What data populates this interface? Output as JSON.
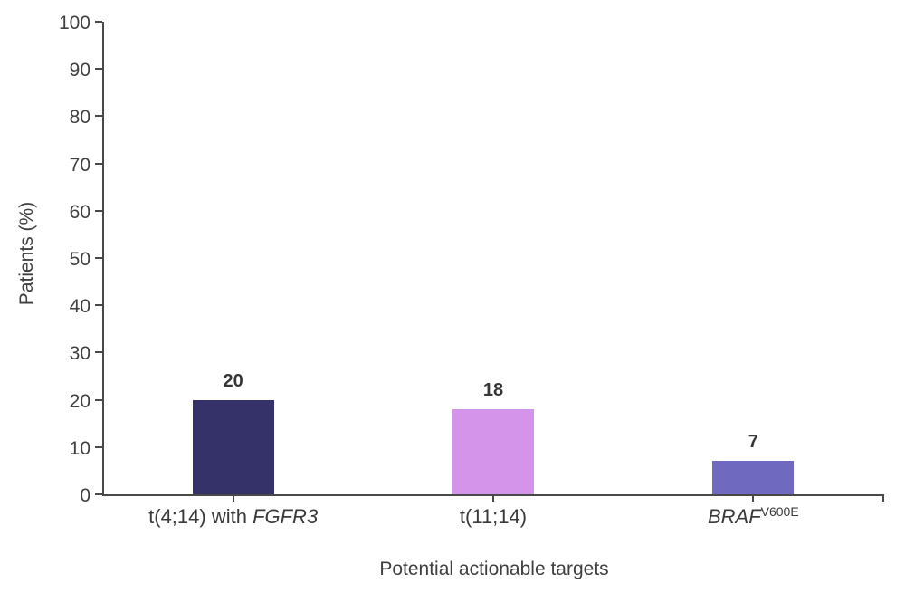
{
  "chart_data": {
    "type": "bar",
    "title": "",
    "xlabel": "Potential actionable targets",
    "ylabel": "Patients (%)",
    "ylim": [
      0,
      100
    ],
    "ytick_step": 10,
    "grid": false,
    "legend": "none",
    "categories": [
      {
        "plain": "t(4;14) with FGFR3",
        "parts": [
          {
            "text": "t(4;14) with ",
            "italic": false,
            "superscript": false
          },
          {
            "text": "FGFR3",
            "italic": true,
            "superscript": false
          }
        ]
      },
      {
        "plain": "t(11;14)",
        "parts": [
          {
            "text": "t(11;14)",
            "italic": false,
            "superscript": false
          }
        ]
      },
      {
        "plain": "BRAFV600E",
        "parts": [
          {
            "text": "BRAF",
            "italic": true,
            "superscript": false
          },
          {
            "text": "V600E",
            "italic": false,
            "superscript": true
          }
        ]
      }
    ],
    "values": [
      20,
      18,
      7
    ],
    "value_labels": [
      "20",
      "18",
      "7"
    ],
    "bar_colors": [
      "#353169",
      "#d394ea",
      "#6f69bf"
    ],
    "axis_color": "#48484a",
    "text_color": "#3f3f3f"
  }
}
